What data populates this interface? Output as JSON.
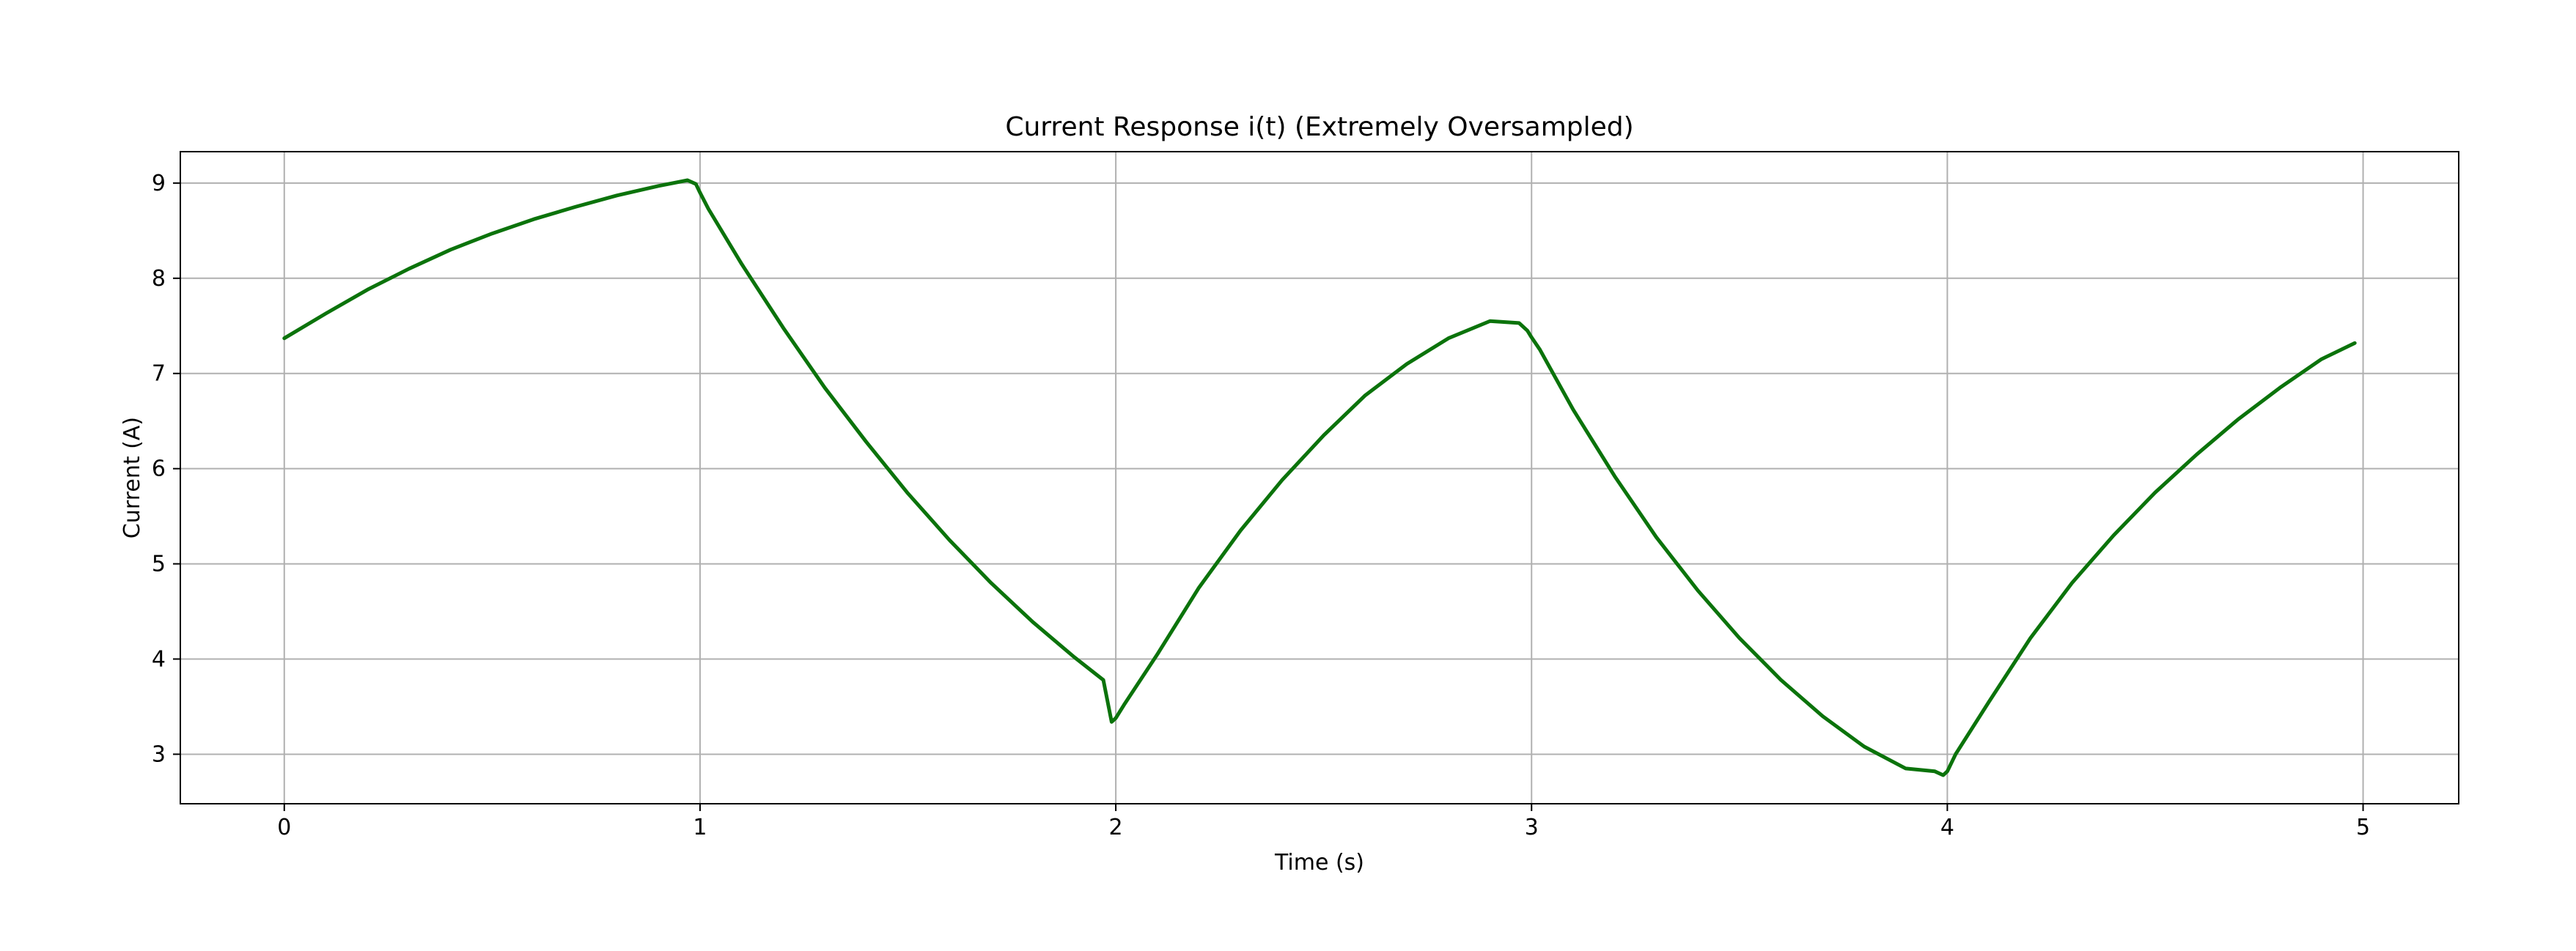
{
  "chart_data": {
    "type": "line",
    "title": "Current Response i(t) (Extremely Oversampled)",
    "xlabel": "Time (s)",
    "ylabel": "Current (A)",
    "xlim": [
      -0.25,
      5.23
    ],
    "ylim": [
      2.48,
      9.33
    ],
    "xticks": [
      0,
      1,
      2,
      3,
      4,
      5
    ],
    "yticks": [
      3,
      4,
      5,
      6,
      7,
      8,
      9
    ],
    "xtick_labels": [
      "0",
      "1",
      "2",
      "3",
      "4",
      "5"
    ],
    "ytick_labels": [
      "3",
      "4",
      "5",
      "6",
      "7",
      "8",
      "9"
    ],
    "grid": true,
    "legend": false,
    "line_color": "#0b730b",
    "series": [
      {
        "x": [
          0.0,
          0.1,
          0.2,
          0.3,
          0.4,
          0.5,
          0.6,
          0.7,
          0.8,
          0.9,
          0.97,
          0.99,
          1.0,
          1.02,
          1.1,
          1.2,
          1.3,
          1.4,
          1.5,
          1.6,
          1.7,
          1.8,
          1.9,
          1.97,
          1.99,
          2.0,
          2.02,
          2.1,
          2.2,
          2.3,
          2.4,
          2.5,
          2.6,
          2.7,
          2.8,
          2.9,
          2.97,
          2.99,
          3.0,
          3.02,
          3.1,
          3.2,
          3.3,
          3.4,
          3.5,
          3.6,
          3.7,
          3.8,
          3.9,
          3.97,
          3.99,
          4.0,
          4.02,
          4.1,
          4.2,
          4.3,
          4.4,
          4.5,
          4.6,
          4.7,
          4.8,
          4.9,
          4.98
        ],
        "y": [
          7.37,
          7.63,
          7.88,
          8.1,
          8.3,
          8.47,
          8.62,
          8.75,
          8.87,
          8.97,
          9.03,
          8.99,
          8.9,
          8.73,
          8.15,
          7.48,
          6.85,
          6.28,
          5.74,
          5.25,
          4.8,
          4.39,
          4.02,
          3.78,
          3.34,
          3.38,
          3.52,
          4.05,
          4.75,
          5.35,
          5.88,
          6.35,
          6.77,
          7.1,
          7.37,
          7.55,
          7.53,
          7.45,
          7.38,
          7.25,
          6.62,
          5.92,
          5.28,
          4.72,
          4.22,
          3.78,
          3.4,
          3.08,
          2.85,
          2.82,
          2.78,
          2.82,
          3.0,
          3.55,
          4.22,
          4.8,
          5.3,
          5.75,
          6.15,
          6.52,
          6.85,
          7.15,
          7.32
        ]
      }
    ]
  }
}
